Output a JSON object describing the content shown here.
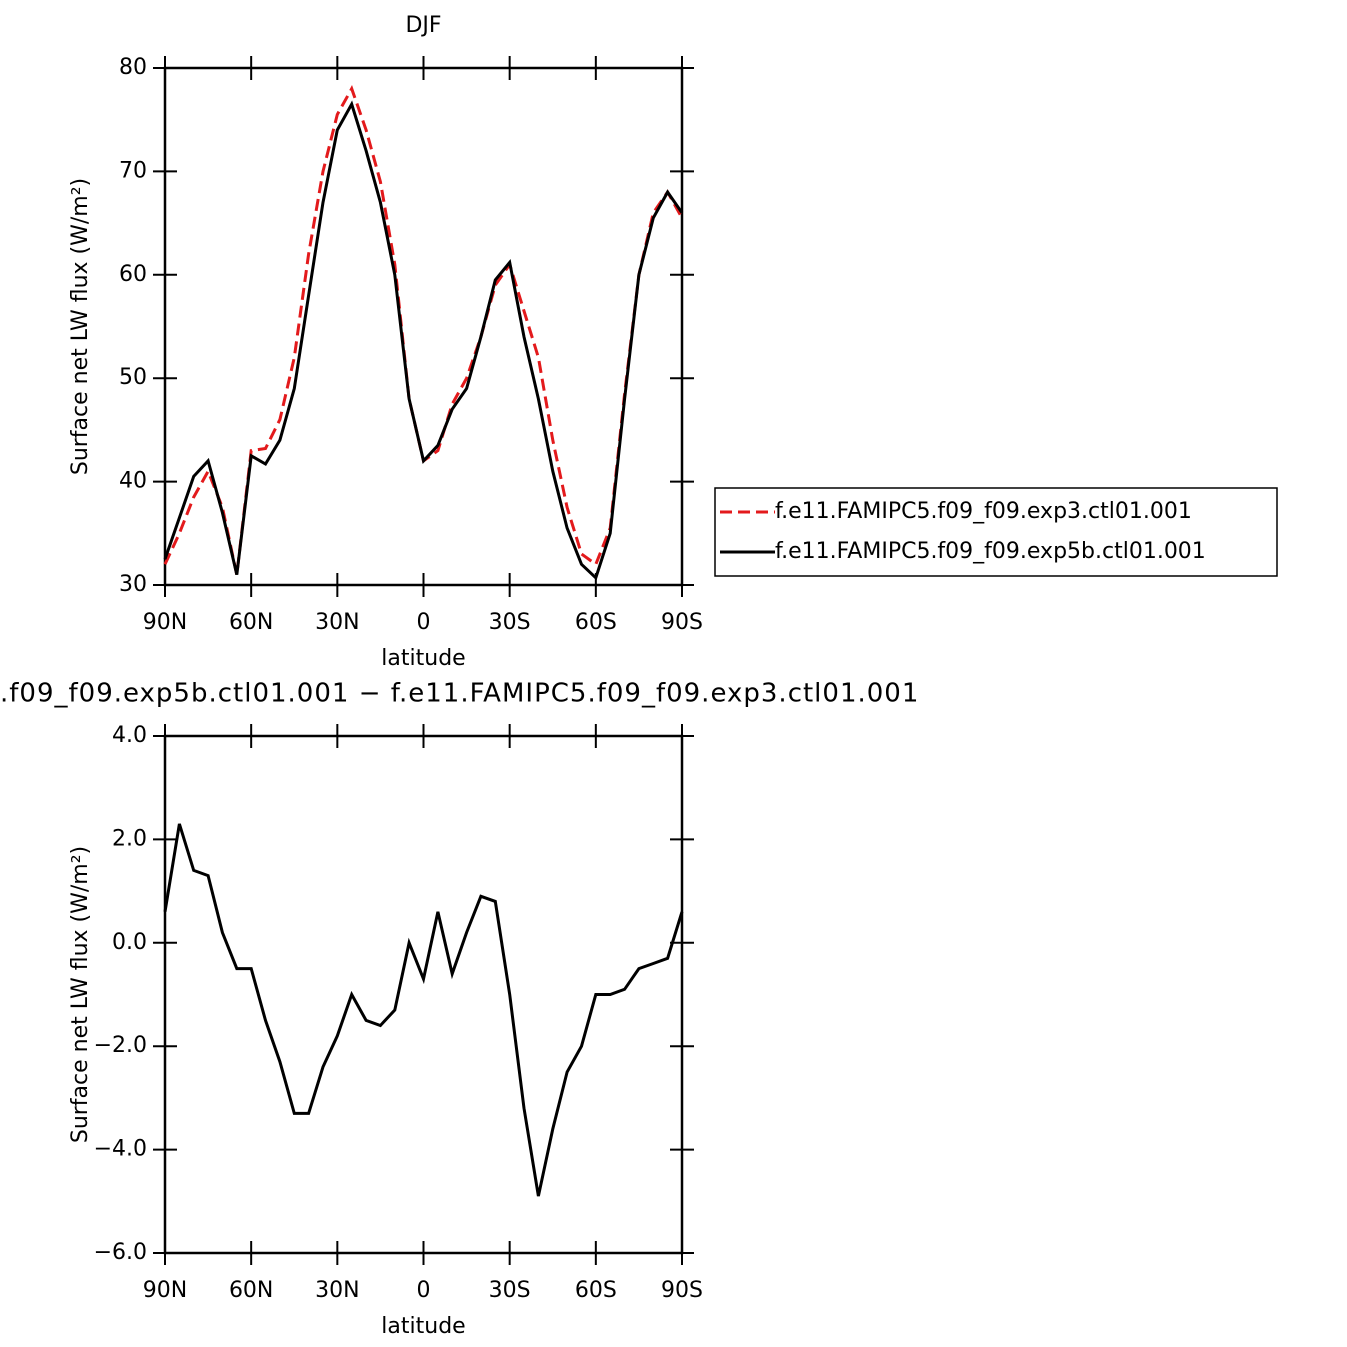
{
  "chart_data": [
    {
      "type": "line",
      "title": "DJF",
      "xlabel": "latitude",
      "ylabel": "Surface net LW flux (W/m²)",
      "x": [
        90,
        85,
        80,
        75,
        70,
        65,
        60,
        55,
        50,
        45,
        40,
        35,
        30,
        25,
        20,
        15,
        10,
        5,
        0,
        -5,
        -10,
        -15,
        -20,
        -25,
        -30,
        -35,
        -40,
        -45,
        -50,
        -55,
        -60,
        -65,
        -70,
        -75,
        -80,
        -85,
        -90
      ],
      "series": [
        {
          "name": "f.e11.FAMIPC5.f09_f09.exp3.ctl01.001",
          "color": "#e31a1c",
          "dashed": true,
          "values": [
            32,
            35,
            38.5,
            41,
            37.5,
            31,
            43,
            43.2,
            46,
            52,
            62,
            70,
            75.5,
            78,
            74,
            69,
            61,
            48,
            42,
            43,
            47.5,
            50,
            54,
            59,
            61,
            56.5,
            52,
            44,
            37.5,
            33,
            32,
            35.5,
            48.5,
            60,
            66,
            68,
            65.5
          ]
        },
        {
          "name": "f.e11.FAMIPC5.f09_f09.exp5b.ctl01.001",
          "color": "#000000",
          "dashed": false,
          "values": [
            32.5,
            36.5,
            40.5,
            42,
            37,
            31,
            42.5,
            41.7,
            44,
            49,
            58,
            67,
            74,
            76.5,
            72,
            67,
            60,
            48,
            42,
            43.5,
            47,
            49,
            54,
            59.5,
            61.2,
            54,
            48,
            41,
            35.5,
            32,
            30.7,
            35,
            48,
            60,
            65.5,
            68,
            66
          ]
        }
      ],
      "xlim": [
        90,
        -90
      ],
      "xticks": [
        {
          "value": 90,
          "label": "90N"
        },
        {
          "value": 60,
          "label": "60N"
        },
        {
          "value": 30,
          "label": "30N"
        },
        0,
        {
          "value": -30,
          "label": "30S"
        },
        {
          "value": -60,
          "label": "60S"
        },
        {
          "value": -90,
          "label": "90S"
        }
      ],
      "ylim": [
        30,
        80
      ],
      "yticks": [
        30,
        40,
        50,
        60,
        70,
        80
      ],
      "legend": "right"
    },
    {
      "type": "line",
      "title": ".f09_f09.exp5b.ctl01.001 − f.e11.FAMIPC5.f09_f09.exp3.ctl01.001",
      "xlabel": "latitude",
      "ylabel": "Surface net LW flux (W/m²)",
      "x": [
        90,
        85,
        80,
        75,
        70,
        65,
        60,
        55,
        50,
        45,
        40,
        35,
        30,
        25,
        20,
        15,
        10,
        5,
        0,
        -5,
        -10,
        -15,
        -20,
        -25,
        -30,
        -35,
        -40,
        -45,
        -50,
        -55,
        -60,
        -65,
        -70,
        -75,
        -80,
        -85,
        -90
      ],
      "color": "#000000",
      "values": [
        0.6,
        2.3,
        1.4,
        1.3,
        0.2,
        -0.5,
        -0.5,
        -1.5,
        -2.3,
        -3.3,
        -3.3,
        -2.4,
        -1.8,
        -1.0,
        -1.5,
        -1.6,
        -1.3,
        0.0,
        -0.7,
        0.6,
        -0.6,
        0.2,
        0.9,
        0.8,
        -1.0,
        -3.2,
        -4.9,
        -3.6,
        -2.5,
        -2.0,
        -1.0,
        -1.0,
        -0.9,
        -0.5,
        -0.4,
        -0.3,
        0.6
      ],
      "xlim": [
        90,
        -90
      ],
      "xticks": [
        {
          "value": 90,
          "label": "90N"
        },
        {
          "value": 60,
          "label": "60N"
        },
        {
          "value": 30,
          "label": "30N"
        },
        0,
        {
          "value": -30,
          "label": "30S"
        },
        {
          "value": -60,
          "label": "60S"
        },
        {
          "value": -90,
          "label": "90S"
        }
      ],
      "ylim": [
        -6,
        4
      ],
      "yticks": [
        {
          "value": -6,
          "label": "−6.0"
        },
        {
          "value": -4,
          "label": "−4.0"
        },
        {
          "value": -2,
          "label": "−2.0"
        },
        {
          "value": 0,
          "label": "0.0"
        },
        {
          "value": 2,
          "label": "2.0"
        },
        {
          "value": 4,
          "label": "4.0"
        }
      ]
    }
  ]
}
